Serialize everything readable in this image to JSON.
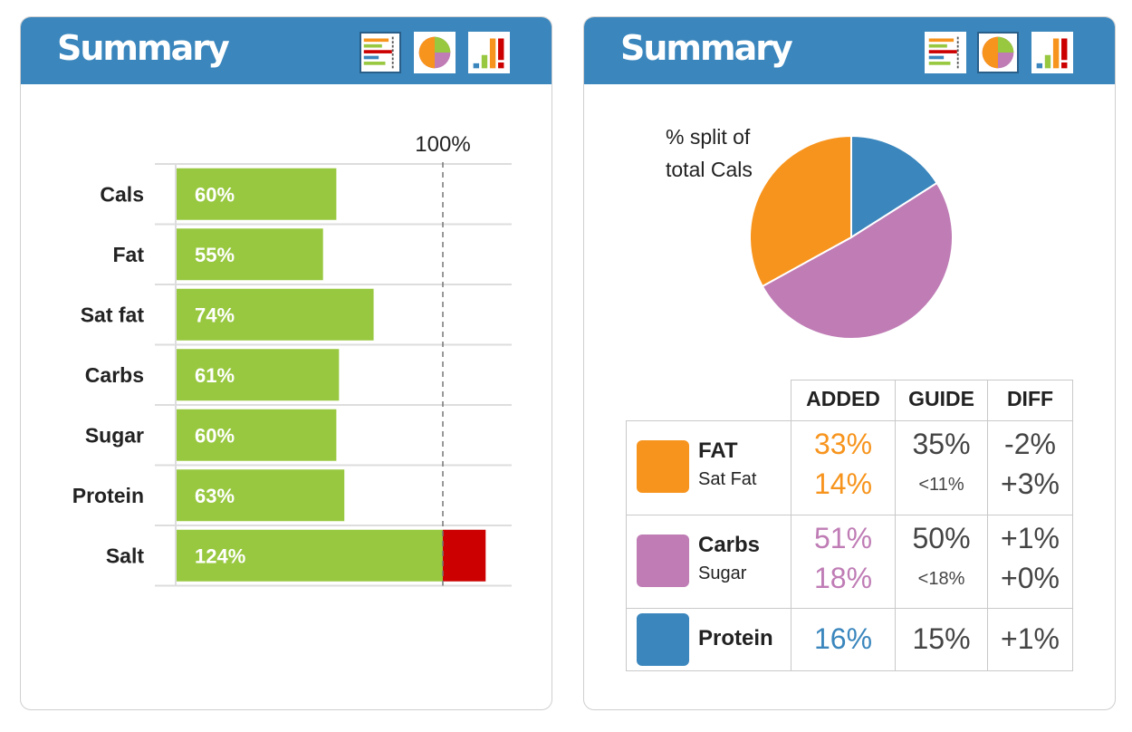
{
  "left_panel": {
    "title": "Summary",
    "reference_label": "100%",
    "view_buttons": [
      {
        "icon": "bar-chart-view-icon",
        "active": true
      },
      {
        "icon": "pie-chart-view-icon",
        "active": false
      },
      {
        "icon": "traffic-light-view-icon",
        "active": false
      }
    ]
  },
  "right_panel": {
    "title": "Summary",
    "pie_caption": "% split of total Cals",
    "view_buttons": [
      {
        "icon": "bar-chart-view-icon",
        "active": false
      },
      {
        "icon": "pie-chart-view-icon",
        "active": true
      },
      {
        "icon": "traffic-light-view-icon",
        "active": false
      }
    ]
  },
  "chart_data": [
    {
      "type": "bar",
      "orientation": "horizontal",
      "categories": [
        "Cals",
        "Fat",
        "Sat fat",
        "Carbs",
        "Sugar",
        "Protein",
        "Salt"
      ],
      "values": [
        60,
        55,
        74,
        61,
        60,
        63,
        124
      ],
      "value_labels": [
        "60%",
        "55%",
        "74%",
        "61%",
        "60%",
        "63%",
        "124%"
      ],
      "reference_line": 100,
      "reference_label": "100%",
      "xlim": [
        0,
        125
      ],
      "colors": {
        "bar": "#98c840",
        "over_limit": "#cc0000",
        "reference_line": "#777777"
      }
    },
    {
      "type": "pie",
      "title": "% split of total Cals",
      "categories": [
        "Protein",
        "Carbs",
        "FAT"
      ],
      "values": [
        16,
        51,
        33
      ],
      "colors": [
        "#3a86bd",
        "#bf7cb5",
        "#f7941d"
      ],
      "start": "12 o'clock, clockwise"
    }
  ],
  "table": {
    "headers": [
      "ADDED",
      "GUIDE",
      "DIFF"
    ],
    "rows": [
      {
        "label": "FAT",
        "sub_label": "Sat Fat",
        "color": "#f7941d",
        "added": "33%",
        "sub_added": "14%",
        "guide": "35%",
        "sub_guide": "<11%",
        "diff": "-2%",
        "sub_diff": "+3%"
      },
      {
        "label": "Carbs",
        "sub_label": "Sugar",
        "color": "#bf7cb5",
        "added": "51%",
        "sub_added": "18%",
        "guide": "50%",
        "sub_guide": "<18%",
        "diff": "+1%",
        "sub_diff": "+0%"
      },
      {
        "label": "Protein",
        "color": "#3a86bd",
        "added": "16%",
        "guide": "15%",
        "diff": "+1%"
      }
    ]
  },
  "colors": {
    "header": "#3a86bd",
    "text": "#222222",
    "muted_text": "#444444"
  }
}
